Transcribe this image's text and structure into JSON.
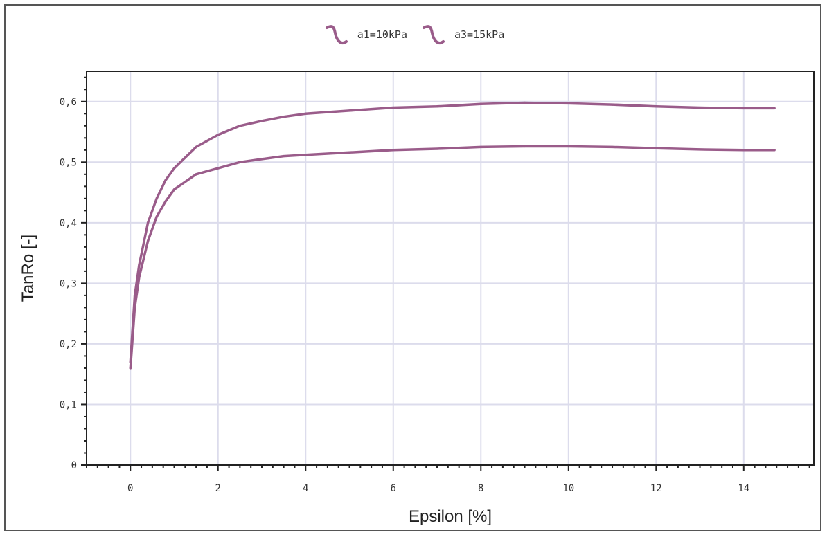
{
  "colors": {
    "series": "#9a5c8a",
    "grid": "#dcdcec",
    "axis": "#222222",
    "frame": "#555555"
  },
  "chart_data": {
    "type": "line",
    "xlabel": "Epsilon [%]",
    "ylabel": "TanRo [-]",
    "xlim": [
      -1,
      15.6
    ],
    "ylim": [
      0,
      0.65
    ],
    "xticks": [
      0,
      2,
      4,
      6,
      8,
      10,
      12,
      14
    ],
    "yticks": [
      0,
      0.1,
      0.2,
      0.3,
      0.4,
      0.5,
      0.6
    ],
    "xtick_labels": [
      "0",
      "2",
      "4",
      "6",
      "8",
      "10",
      "12",
      "14"
    ],
    "ytick_labels": [
      "0",
      "0,1",
      "0,2",
      "0,3",
      "0,4",
      "0,5",
      "0,6"
    ],
    "grid": true,
    "legend_position": "top-center",
    "series": [
      {
        "name": "a1=10kPa",
        "x": [
          0,
          0.1,
          0.2,
          0.4,
          0.6,
          0.8,
          1.0,
          1.5,
          2.0,
          2.5,
          3.0,
          3.5,
          4.0,
          5.0,
          6.0,
          7.0,
          8.0,
          9.0,
          10.0,
          11.0,
          12.0,
          13.0,
          14.0,
          14.7
        ],
        "y": [
          0.16,
          0.26,
          0.31,
          0.37,
          0.41,
          0.435,
          0.455,
          0.48,
          0.49,
          0.5,
          0.505,
          0.51,
          0.512,
          0.516,
          0.52,
          0.522,
          0.525,
          0.526,
          0.526,
          0.525,
          0.523,
          0.521,
          0.52,
          0.52
        ]
      },
      {
        "name": "a3=15kPa",
        "x": [
          0,
          0.1,
          0.2,
          0.4,
          0.6,
          0.8,
          1.0,
          1.5,
          2.0,
          2.5,
          3.0,
          3.5,
          4.0,
          5.0,
          6.0,
          7.0,
          8.0,
          9.0,
          10.0,
          11.0,
          12.0,
          13.0,
          14.0,
          14.7
        ],
        "y": [
          0.17,
          0.28,
          0.33,
          0.4,
          0.44,
          0.47,
          0.49,
          0.525,
          0.545,
          0.56,
          0.568,
          0.575,
          0.58,
          0.585,
          0.59,
          0.592,
          0.596,
          0.598,
          0.597,
          0.595,
          0.592,
          0.59,
          0.589,
          0.589
        ]
      }
    ]
  }
}
